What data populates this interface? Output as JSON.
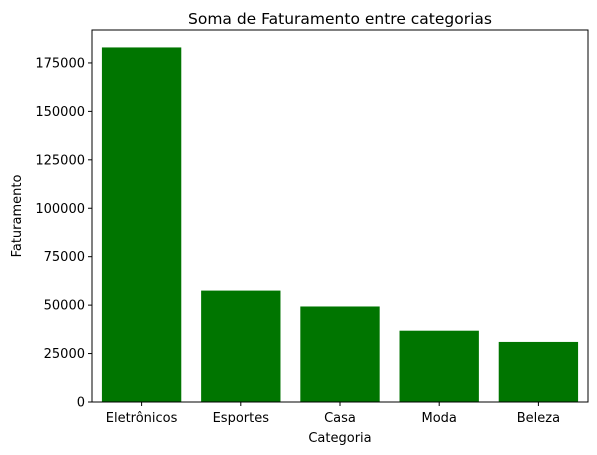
{
  "chart_data": {
    "type": "bar",
    "title": "Soma de Faturamento entre categorias",
    "xlabel": "Categoria",
    "ylabel": "Faturamento",
    "categories": [
      "Eletrônicos",
      "Esportes",
      "Casa",
      "Moda",
      "Beleza"
    ],
    "values": [
      183000,
      57500,
      49300,
      36800,
      31000
    ],
    "ylim": [
      0,
      192000
    ],
    "yticks": [
      0,
      25000,
      50000,
      75000,
      100000,
      125000,
      150000,
      175000
    ],
    "bar_color": "#007500",
    "grid": false,
    "legend": "none"
  }
}
